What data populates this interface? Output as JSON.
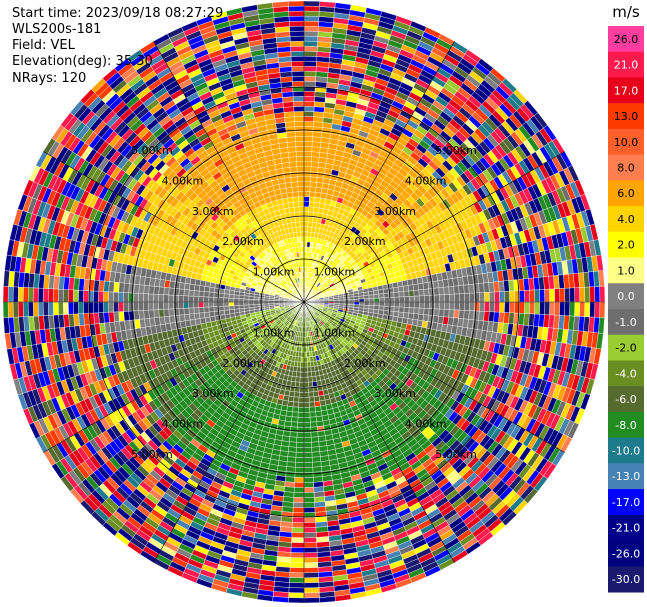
{
  "chart_data": {
    "type": "heatmap",
    "plot_kind": "ppi-polar-velocity",
    "info": {
      "start_time": "Start time: 2023/09/18 08:27:29",
      "instrument": "WLS200s-181",
      "field": "Field: VEL",
      "elevation": "Elevation(deg): 35.30",
      "nrays": "NRays: 120"
    },
    "nrays": 120,
    "max_range_km": 7,
    "range_rings_km": [
      1,
      2,
      3,
      4,
      5
    ],
    "ring_labels": {
      "r1": "1.00km",
      "r2": "2.00km",
      "r3": "3.00km",
      "r4": "4.00km",
      "r5": "5.00km"
    },
    "colorbar": {
      "unit": "m/s",
      "ticks": [
        "26.0",
        "21.0",
        "17.0",
        "13.0",
        "10.0",
        "8.0",
        "6.0",
        "4.0",
        "2.0",
        "1.0",
        "0.0",
        "-1.0",
        "-2.0",
        "-4.0",
        "-6.0",
        "-8.0",
        "-10.0",
        "-13.0",
        "-17.0",
        "-21.0",
        "-26.0",
        "-30.0"
      ],
      "colors": [
        "#ff3ea0",
        "#ff1a4e",
        "#e8001a",
        "#ff3a00",
        "#ff5f2a",
        "#ff7f50",
        "#ffa500",
        "#ffd400",
        "#ffff00",
        "#ffff88",
        "#808080",
        "#6e6e6e",
        "#9acd32",
        "#6b8e23",
        "#556b2f",
        "#228b22",
        "#1e7b8c",
        "#4682b4",
        "#0000ff",
        "#00008b",
        "#000080",
        "#191970"
      ]
    },
    "wind_field": {
      "description_free_values_ms": {
        "north_sector_near": 2.0,
        "north_sector_mid": 4.0,
        "north_sector_far": 6.0,
        "south_sector_near": -2.0,
        "south_sector_mid": -4.0,
        "south_sector_far": -6.0,
        "east_west_band": 0.0
      },
      "noise_start_km": 4.0
    }
  }
}
